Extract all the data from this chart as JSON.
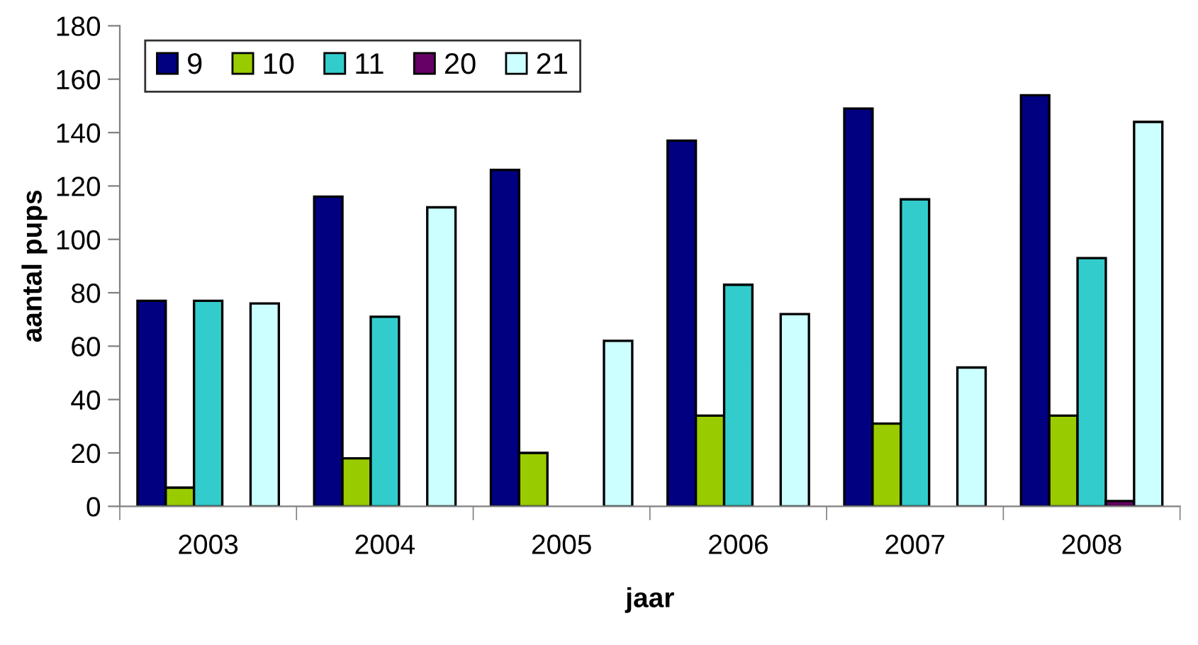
{
  "chart_data": {
    "type": "bar",
    "xlabel": "jaar",
    "ylabel": "aantal pups",
    "categories": [
      "2003",
      "2004",
      "2005",
      "2006",
      "2007",
      "2008"
    ],
    "series": [
      {
        "name": "9",
        "color": "#000080",
        "values": [
          77,
          116,
          126,
          137,
          149,
          154
        ]
      },
      {
        "name": "10",
        "color": "#99cc00",
        "values": [
          7,
          18,
          20,
          34,
          31,
          34
        ]
      },
      {
        "name": "11",
        "color": "#33cccc",
        "values": [
          77,
          71,
          null,
          83,
          115,
          93
        ]
      },
      {
        "name": "20",
        "color": "#660066",
        "values": [
          null,
          null,
          null,
          null,
          null,
          2
        ]
      },
      {
        "name": "21",
        "color": "#ccffff",
        "values": [
          76,
          112,
          62,
          72,
          52,
          144
        ]
      }
    ],
    "ylim": [
      0,
      180
    ],
    "yticks": [
      0,
      20,
      40,
      60,
      80,
      100,
      120,
      140,
      160,
      180
    ],
    "grid": false,
    "legend": "top left"
  }
}
